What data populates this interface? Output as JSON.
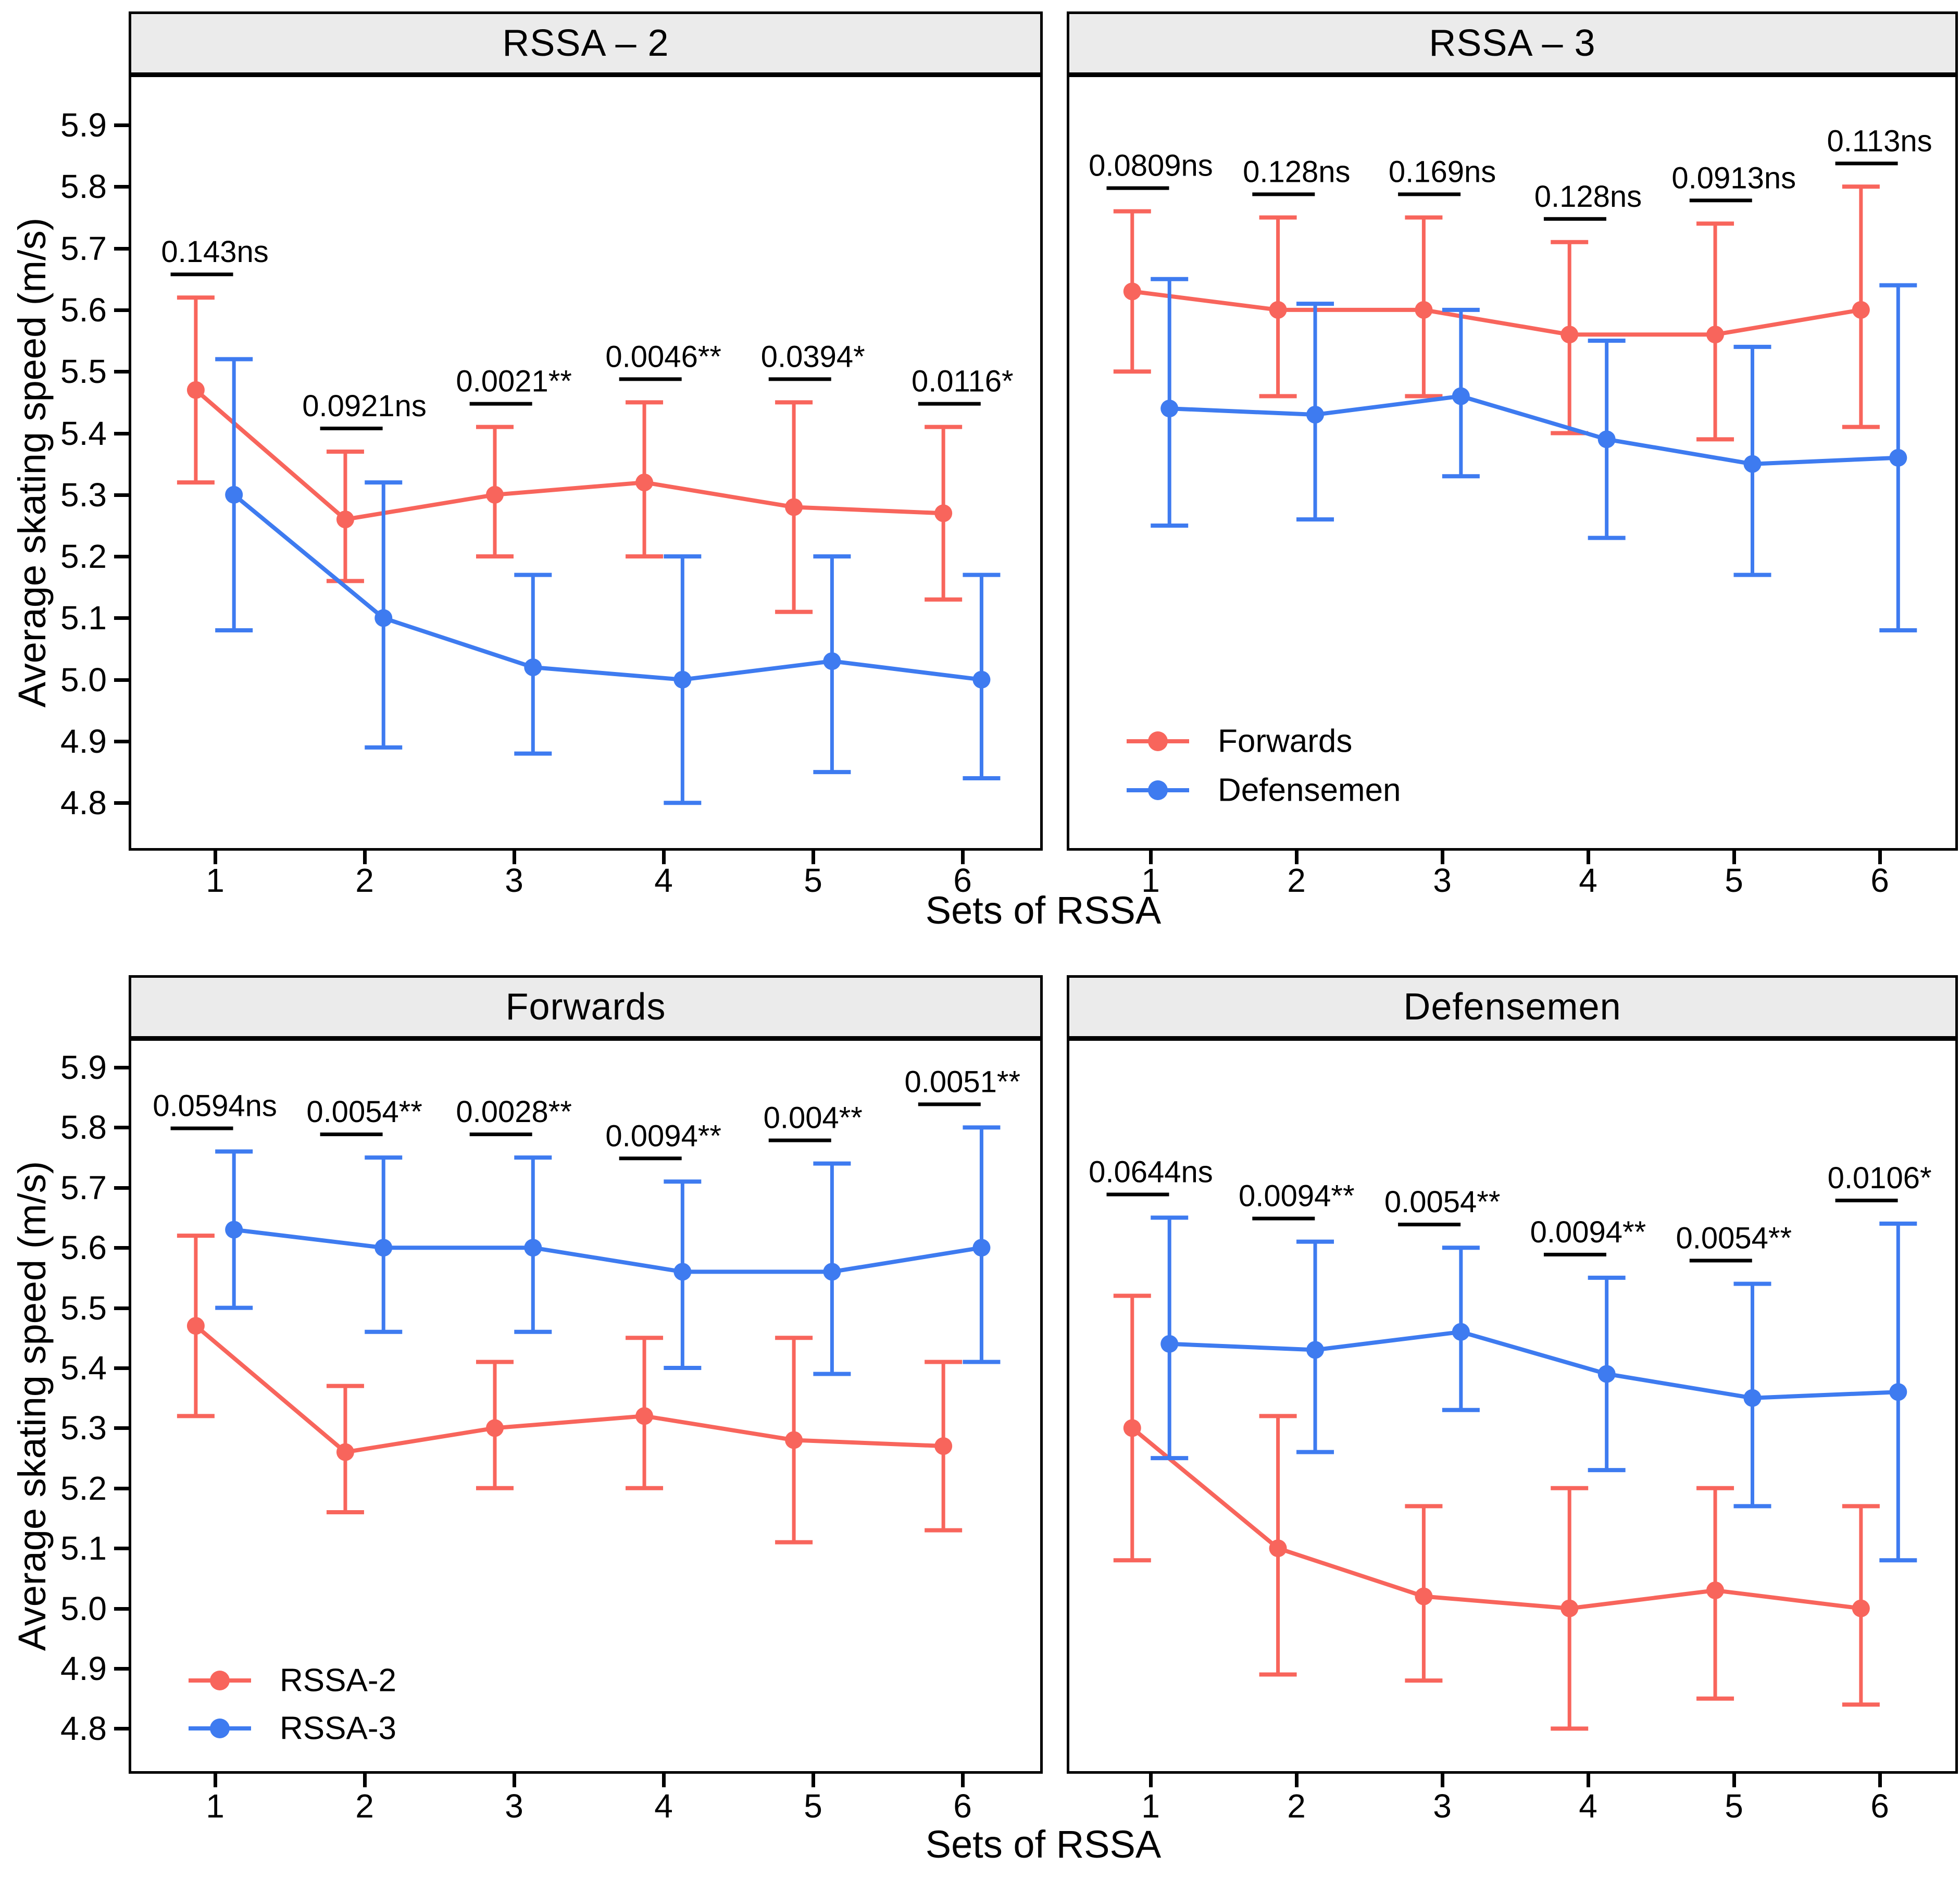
{
  "figure": {
    "y_axis_label": "Average skating speed (m/s)",
    "x_axis_label": "Sets of RSSA",
    "y_ticks": [
      "5.9",
      "5.8",
      "5.7",
      "5.6",
      "5.5",
      "5.4",
      "5.3",
      "5.2",
      "5.1",
      "5.0",
      "4.9",
      "4.8"
    ],
    "x_ticks": [
      "1",
      "2",
      "3",
      "4",
      "5",
      "6"
    ],
    "colors": {
      "red": "#F8655C",
      "blue": "#3E7BF0",
      "panel_header_bg": "#EBEBEB",
      "border": "#000000",
      "annotation": "#000000"
    }
  },
  "chart_data": [
    {
      "type": "line",
      "title": "RSSA – 2",
      "xlabel": "Sets of RSSA",
      "ylabel": "Average skating speed (m/s)",
      "x": [
        1,
        2,
        3,
        4,
        5,
        6
      ],
      "ylim": [
        4.73,
        5.98
      ],
      "grid": false,
      "series": [
        {
          "name": "Forwards",
          "color_key": "red",
          "means": [
            5.47,
            5.26,
            5.3,
            5.32,
            5.28,
            5.27
          ],
          "lower": [
            5.32,
            5.16,
            5.2,
            5.2,
            5.11,
            5.13
          ],
          "upper": [
            5.62,
            5.37,
            5.41,
            5.45,
            5.45,
            5.41
          ]
        },
        {
          "name": "Defensemen",
          "color_key": "blue",
          "means": [
            5.3,
            5.1,
            5.02,
            5.0,
            5.03,
            5.0
          ],
          "lower": [
            5.08,
            4.89,
            4.88,
            4.8,
            4.85,
            4.84
          ],
          "upper": [
            5.52,
            5.32,
            5.17,
            5.2,
            5.2,
            5.17
          ]
        }
      ],
      "annotations": [
        "0.143ns",
        "0.0921ns",
        "0.0021**",
        "0.0046**",
        "0.0394*",
        "0.0116*"
      ],
      "legend": null
    },
    {
      "type": "line",
      "title": "RSSA – 3",
      "xlabel": "Sets of RSSA",
      "ylabel": "Average skating speed (m/s)",
      "x": [
        1,
        2,
        3,
        4,
        5,
        6
      ],
      "ylim": [
        4.73,
        5.98
      ],
      "grid": false,
      "series": [
        {
          "name": "Forwards",
          "color_key": "red",
          "means": [
            5.63,
            5.6,
            5.6,
            5.56,
            5.56,
            5.6
          ],
          "lower": [
            5.5,
            5.46,
            5.46,
            5.4,
            5.39,
            5.41
          ],
          "upper": [
            5.76,
            5.75,
            5.75,
            5.71,
            5.74,
            5.8
          ]
        },
        {
          "name": "Defensemen",
          "color_key": "blue",
          "means": [
            5.44,
            5.43,
            5.46,
            5.39,
            5.35,
            5.36
          ],
          "lower": [
            5.25,
            5.26,
            5.33,
            5.23,
            5.17,
            5.08
          ],
          "upper": [
            5.65,
            5.61,
            5.6,
            5.55,
            5.54,
            5.64
          ]
        }
      ],
      "annotations": [
        "0.0809ns",
        "0.128ns",
        "0.169ns",
        "0.128ns",
        "0.0913ns",
        "0.113ns"
      ],
      "legend": {
        "position": "bottom-left",
        "items": [
          {
            "label": "Forwards",
            "color_key": "red"
          },
          {
            "label": "Defensemen",
            "color_key": "blue"
          }
        ]
      }
    },
    {
      "type": "line",
      "title": "Forwards",
      "xlabel": "Sets of RSSA",
      "ylabel": "Average skating speed (m/s)",
      "x": [
        1,
        2,
        3,
        4,
        5,
        6
      ],
      "ylim": [
        4.74,
        5.95
      ],
      "grid": false,
      "series": [
        {
          "name": "RSSA-2",
          "color_key": "red",
          "means": [
            5.47,
            5.26,
            5.3,
            5.32,
            5.28,
            5.27
          ],
          "lower": [
            5.32,
            5.16,
            5.2,
            5.2,
            5.11,
            5.13
          ],
          "upper": [
            5.62,
            5.37,
            5.41,
            5.45,
            5.45,
            5.41
          ]
        },
        {
          "name": "RSSA-3",
          "color_key": "blue",
          "means": [
            5.63,
            5.6,
            5.6,
            5.56,
            5.56,
            5.6
          ],
          "lower": [
            5.5,
            5.46,
            5.46,
            5.4,
            5.39,
            5.41
          ],
          "upper": [
            5.76,
            5.75,
            5.75,
            5.71,
            5.74,
            5.8
          ]
        }
      ],
      "annotations": [
        "0.0594ns",
        "0.0054**",
        "0.0028**",
        "0.0094**",
        "0.004**",
        "0.0051**"
      ],
      "legend": {
        "position": "bottom-left",
        "items": [
          {
            "label": "RSSA-2",
            "color_key": "red"
          },
          {
            "label": "RSSA-3",
            "color_key": "blue"
          }
        ]
      }
    },
    {
      "type": "line",
      "title": "Defensemen",
      "xlabel": "Sets of RSSA",
      "ylabel": "Average skating speed (m/s)",
      "x": [
        1,
        2,
        3,
        4,
        5,
        6
      ],
      "ylim": [
        4.74,
        5.95
      ],
      "grid": false,
      "series": [
        {
          "name": "RSSA-2",
          "color_key": "red",
          "means": [
            5.3,
            5.1,
            5.02,
            5.0,
            5.03,
            5.0
          ],
          "lower": [
            5.08,
            4.89,
            4.88,
            4.8,
            4.85,
            4.84
          ],
          "upper": [
            5.52,
            5.32,
            5.17,
            5.2,
            5.2,
            5.17
          ]
        },
        {
          "name": "RSSA-3",
          "color_key": "blue",
          "means": [
            5.44,
            5.43,
            5.46,
            5.39,
            5.35,
            5.36
          ],
          "lower": [
            5.25,
            5.26,
            5.33,
            5.23,
            5.17,
            5.08
          ],
          "upper": [
            5.65,
            5.61,
            5.6,
            5.55,
            5.54,
            5.64
          ]
        }
      ],
      "annotations": [
        "0.0644ns",
        "0.0094**",
        "0.0054**",
        "0.0094**",
        "0.0054**",
        "0.0106*"
      ],
      "legend": null
    }
  ]
}
